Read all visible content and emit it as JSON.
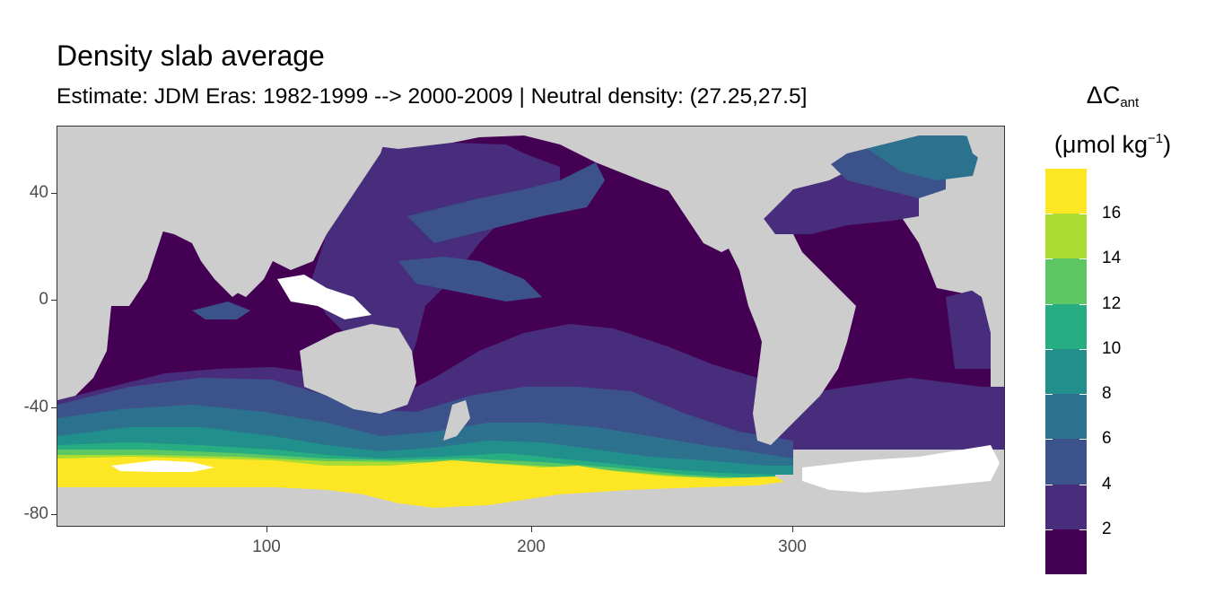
{
  "title": "Density slab average",
  "subtitle": "Estimate: JDM Eras: 1982-1999 --> 2000-2009 | Neutral density: (27.25,27.5]",
  "legend": {
    "symbol": "ΔC",
    "subscript": "ant",
    "unit_open": "(μmol kg",
    "unit_sup": "−1",
    "unit_close": ")",
    "ticks": [
      "2",
      "4",
      "6",
      "8",
      "10",
      "12",
      "14",
      "16"
    ],
    "breaks": [
      0,
      2,
      4,
      6,
      8,
      10,
      12,
      14,
      16,
      18
    ],
    "colors": [
      "#440154",
      "#472D7B",
      "#3B528B",
      "#2C728E",
      "#21908C",
      "#27AD81",
      "#5DC863",
      "#AADC32",
      "#FDE725"
    ]
  },
  "axes": {
    "x_ticks": [
      "100",
      "200",
      "300"
    ],
    "y_ticks": [
      "40",
      "0",
      "-40",
      "-80"
    ],
    "x_range": [
      20,
      380
    ],
    "y_range": [
      -85,
      65
    ]
  },
  "colors": {
    "land": "#cdcdcd",
    "no_data": "#ffffff",
    "panel_border": "#333333"
  }
}
